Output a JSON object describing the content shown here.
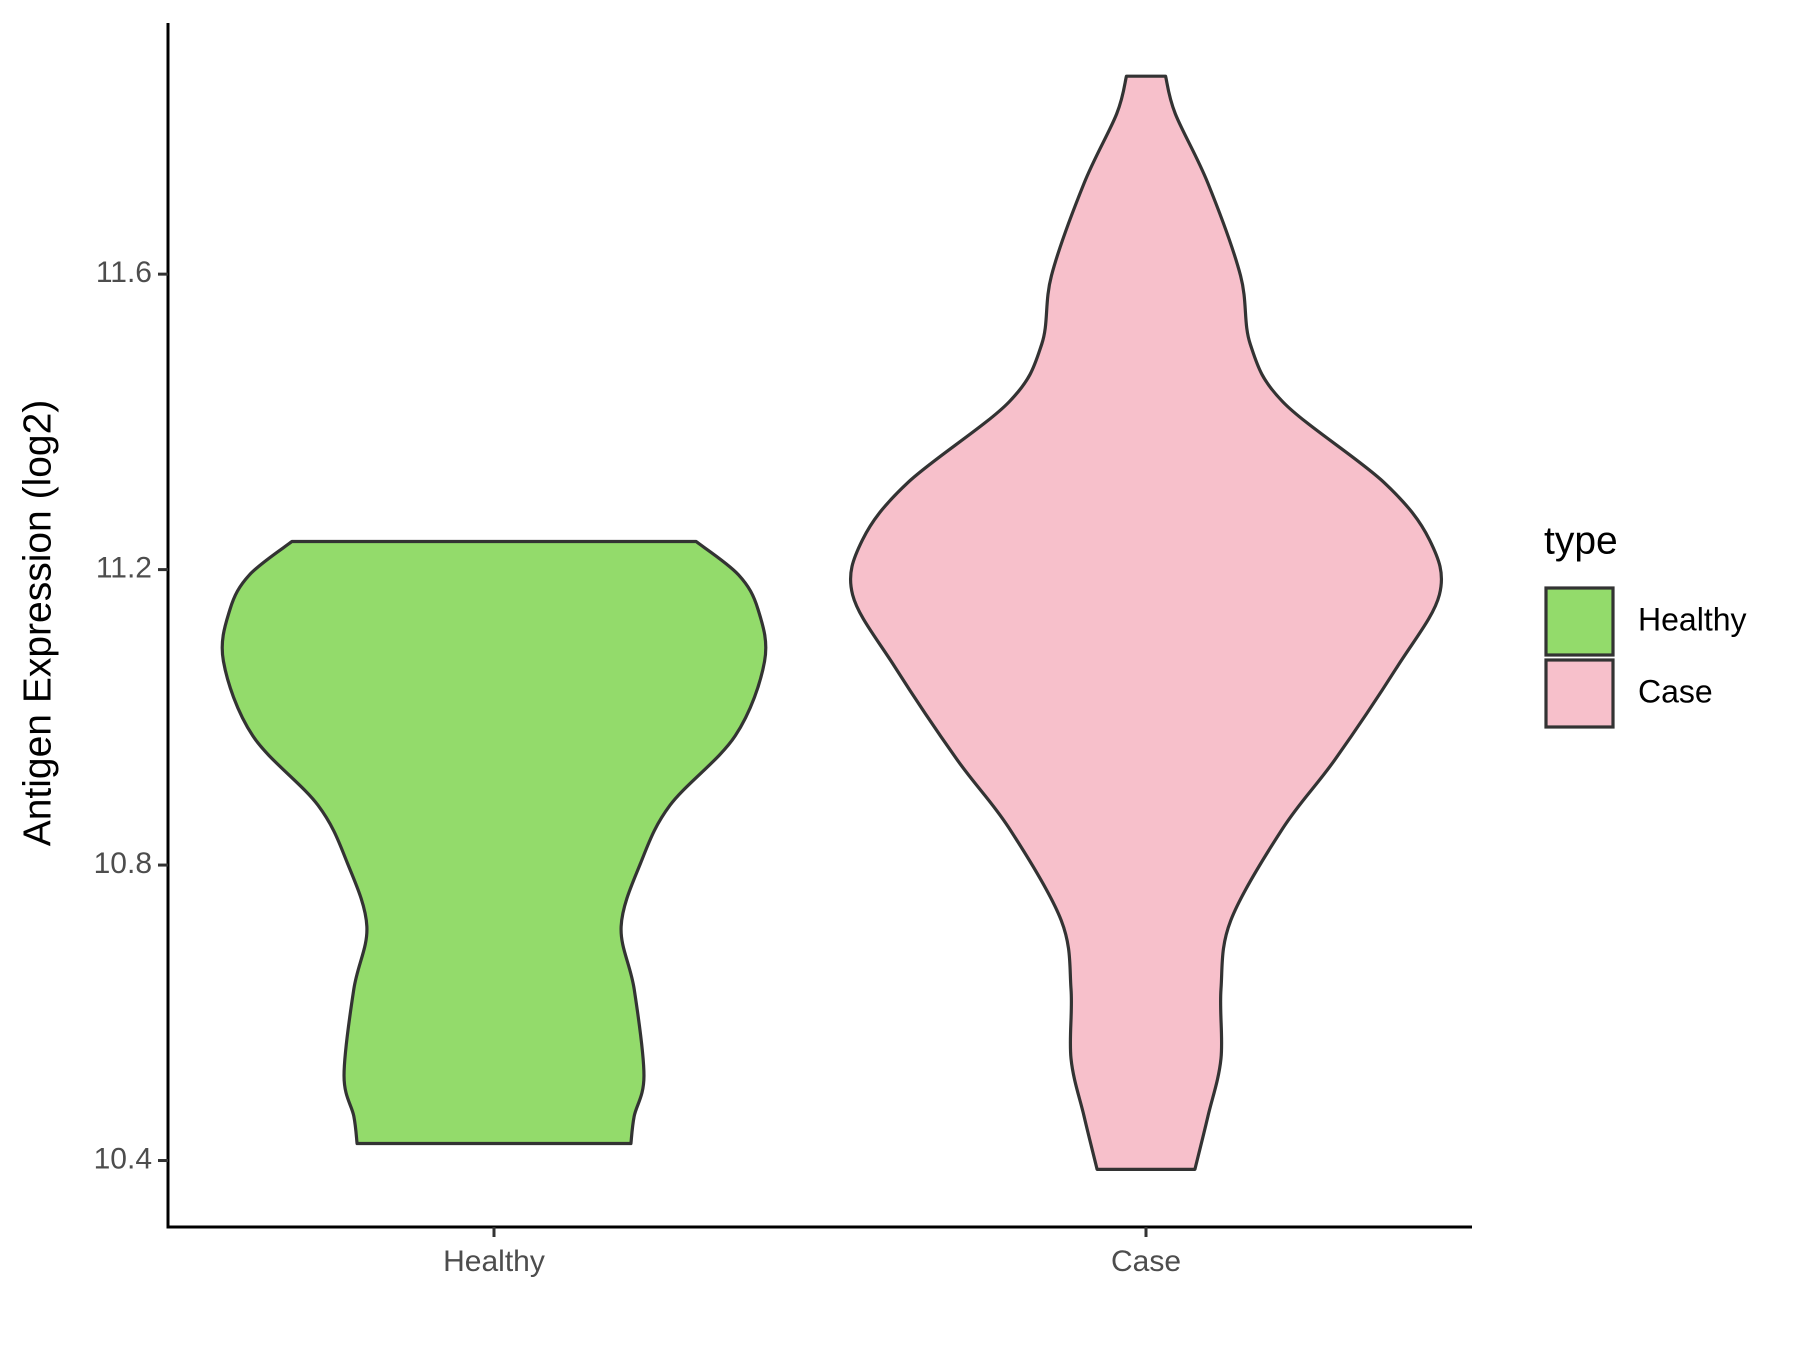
{
  "chart_data": {
    "type": "violin",
    "y_label": "Antigen Expression (log2)",
    "legend_title": "type",
    "legend_position": "right",
    "categories": [
      "Healthy",
      "Case"
    ],
    "ylim": [
      10.31,
      11.94
    ],
    "yticks": [
      10.4,
      10.8,
      11.2,
      11.6
    ],
    "grid": false,
    "series": [
      {
        "name": "Healthy",
        "color": "#93db6b",
        "y": [
          11.238,
          11.193,
          11.146,
          11.076,
          10.975,
          10.881,
          10.803,
          10.717,
          10.632,
          10.515,
          10.46,
          10.423
        ],
        "width": [
          0.62,
          0.75,
          0.81,
          0.83,
          0.74,
          0.54,
          0.45,
          0.39,
          0.43,
          0.46,
          0.43,
          0.42
        ]
      },
      {
        "name": "Case",
        "color": "#f7c0cb",
        "y": [
          11.868,
          11.817,
          11.723,
          11.598,
          11.505,
          11.427,
          11.318,
          11.24,
          11.166,
          11.068,
          10.943,
          10.85,
          10.725,
          10.632,
          10.538,
          10.46,
          10.388
        ],
        "width": [
          0.06,
          0.09,
          0.19,
          0.29,
          0.32,
          0.42,
          0.73,
          0.87,
          0.9,
          0.77,
          0.58,
          0.42,
          0.26,
          0.23,
          0.23,
          0.19,
          0.15
        ]
      }
    ]
  }
}
